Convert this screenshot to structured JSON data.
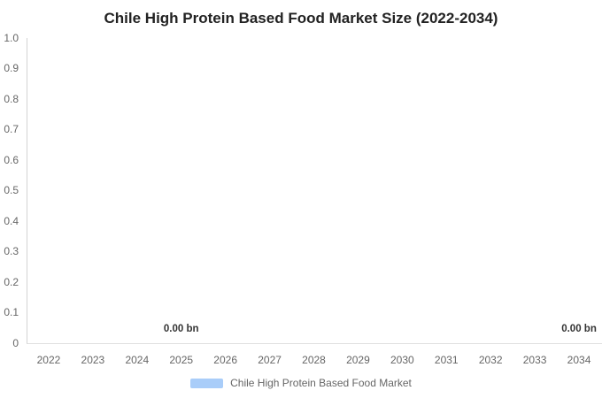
{
  "chart_data": {
    "type": "area",
    "title": "Chile High Protein Based Food Market Size (2022-2034)",
    "unit": "bn",
    "categories": [
      "2022",
      "2023",
      "2024",
      "2025",
      "2026",
      "2027",
      "2028",
      "2029",
      "2030",
      "2031",
      "2032",
      "2033",
      "2034"
    ],
    "series": [
      {
        "name": "Chile High Protein Based Food Market",
        "color": "#a9cdf9",
        "values": [
          0,
          0,
          0,
          0,
          0,
          0,
          0,
          0,
          0,
          0,
          0,
          0,
          0
        ]
      }
    ],
    "ylim": [
      0,
      1.0
    ],
    "yticks": [
      "1.0",
      "0.9",
      "0.8",
      "0.7",
      "0.6",
      "0.5",
      "0.4",
      "0.3",
      "0.2",
      "0.1",
      "0"
    ],
    "grid": false,
    "legend_position": "bottom",
    "data_labels": [
      {
        "category": "2025",
        "text": "0.00 bn"
      },
      {
        "category": "2034",
        "text": "0.00 bn"
      }
    ]
  },
  "legend": {
    "label": "Chile High Protein Based Food Market",
    "swatch_color": "#a9cdf9"
  },
  "colors": {
    "title": "#222222",
    "tick_label": "#666666",
    "axis_line": "#d8d8d8",
    "data_label": "#333333"
  }
}
